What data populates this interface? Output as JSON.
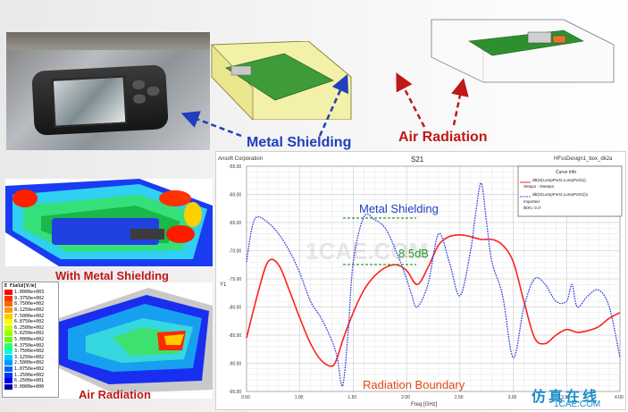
{
  "callouts": {
    "metal_shielding": "Metal Shielding",
    "air_radiation": "Air Radiation",
    "with_metal_shielding": "With Metal Shielding",
    "air_radiation_sim": "Air Radiation"
  },
  "legend": {
    "title": "E Field[V/m]",
    "ticks": [
      "1.0000e+003",
      "9.3750e+002",
      "8.7500e+002",
      "8.1250e+002",
      "7.5000e+002",
      "6.8750e+002",
      "6.2500e+002",
      "5.6250e+002",
      "5.0000e+002",
      "4.3750e+002",
      "3.7500e+002",
      "3.1250e+002",
      "2.5000e+002",
      "1.8750e+002",
      "1.2500e+002",
      "6.2500e+001",
      "0.0000e+000"
    ],
    "colors": [
      "#ff0000",
      "#ff3300",
      "#ff6600",
      "#ff9900",
      "#ffcc00",
      "#ffff00",
      "#ccff00",
      "#99ff00",
      "#66ff00",
      "#33ff66",
      "#00ffcc",
      "#00ccff",
      "#0099ff",
      "#0066ff",
      "#0033ff",
      "#0000ee",
      "#0000aa"
    ]
  },
  "plot": {
    "company": "Ansoft Corporation",
    "title": "S21",
    "design": "HFssDesign1_box_dk2a",
    "curve_info_title": "Curve Info",
    "curve1_name": "dB(S(LumpPort2,LumpPort1))",
    "curve1_setup": "Setup1 : Sweep1",
    "curve2_name": "dB(S(LumpPort2,LumpPort1))1",
    "curve2_setup": "Imported",
    "curve2_extra": "$OK='2.0'",
    "annot_metal": "Metal Shielding",
    "annot_db": "8.5dB",
    "annot_radiation": "Radiation Boundary",
    "watermark_text": "1CAE.COM"
  },
  "chart_data": {
    "type": "line",
    "xlabel": "Freq [GHz]",
    "ylabel": "Y1",
    "xlim": [
      0.5,
      4.0
    ],
    "ylim": [
      -95,
      -55
    ],
    "xticks": [
      "0.50",
      "1.00",
      "1.50",
      "2.00",
      "2.50",
      "3.00",
      "3.50",
      "4.00"
    ],
    "yticks": [
      "-55.00",
      "-60.00",
      "-65.00",
      "-70.00",
      "-75.00",
      "-80.00",
      "-85.00",
      "-90.00",
      "-95.00"
    ],
    "series": [
      {
        "name": "dB(S(LumpPort2,LumpPort1))",
        "color": "#ff2020",
        "dashed": false,
        "x": [
          0.5,
          0.6,
          0.7,
          0.8,
          0.9,
          1.0,
          1.1,
          1.2,
          1.3,
          1.35,
          1.4,
          1.5,
          1.6,
          1.7,
          1.8,
          1.9,
          2.0,
          2.1,
          2.2,
          2.3,
          2.4,
          2.5,
          2.6,
          2.7,
          2.8,
          2.9,
          3.0,
          3.1,
          3.2,
          3.3,
          3.4,
          3.5,
          3.6,
          3.7,
          3.8,
          3.9,
          4.0
        ],
        "y": [
          -85.5,
          -78,
          -72,
          -72.5,
          -77,
          -82,
          -86.5,
          -89.5,
          -90.5,
          -89,
          -86,
          -81,
          -77,
          -74.5,
          -73,
          -72.5,
          -73.5,
          -76,
          -73,
          -69,
          -67.5,
          -67.2,
          -67.5,
          -68,
          -68,
          -69,
          -72,
          -79,
          -85.5,
          -86.5,
          -85,
          -84,
          -84.5,
          -84.2,
          -83.5,
          -82,
          -81
        ]
      },
      {
        "name": "dB(S(LumpPort2,LumpPort1))1",
        "color": "#2a3bdc",
        "dashed": true,
        "x": [
          0.5,
          0.55,
          0.6,
          0.7,
          0.8,
          0.9,
          1.0,
          1.1,
          1.2,
          1.3,
          1.35,
          1.4,
          1.45,
          1.5,
          1.6,
          1.7,
          1.8,
          1.9,
          2.0,
          2.05,
          2.1,
          2.2,
          2.3,
          2.4,
          2.5,
          2.6,
          2.65,
          2.7,
          2.75,
          2.8,
          2.9,
          3.0,
          3.1,
          3.2,
          3.3,
          3.4,
          3.5,
          3.55,
          3.6,
          3.7,
          3.8,
          3.9,
          4.0
        ],
        "y": [
          -72,
          -66,
          -64,
          -65,
          -67,
          -70,
          -74,
          -79,
          -82,
          -86,
          -89,
          -94,
          -85,
          -72,
          -64,
          -64.5,
          -66,
          -70,
          -75,
          -78,
          -80,
          -76,
          -67,
          -72,
          -78,
          -70,
          -63,
          -58,
          -65,
          -72,
          -78,
          -89,
          -80,
          -75,
          -76,
          -79,
          -79,
          -76,
          -80,
          -78,
          -77,
          -80,
          -89
        ]
      }
    ]
  }
}
